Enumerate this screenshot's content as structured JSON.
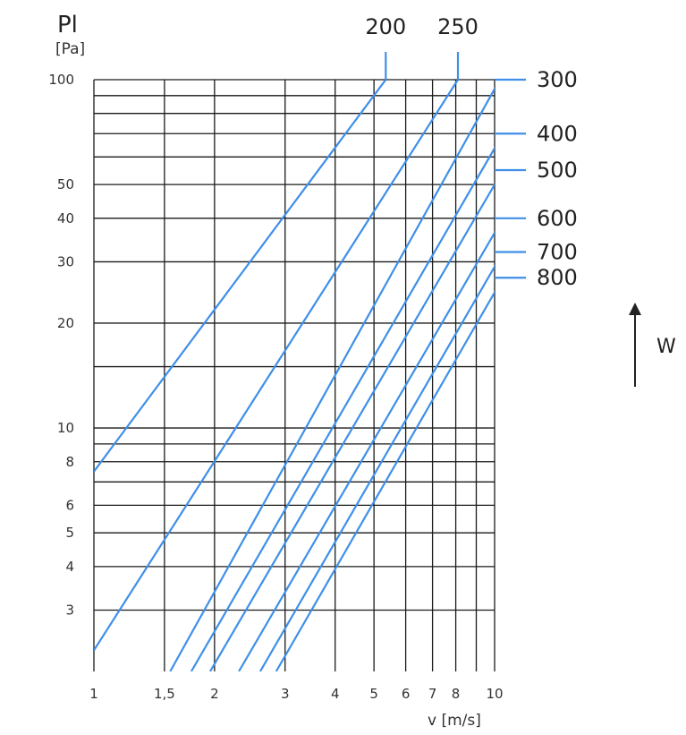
{
  "chart_data": {
    "type": "line",
    "scale": "log-log",
    "ylabel": "Pl",
    "ylabel_unit": "[Pa]",
    "xlabel": "v [m/s]",
    "xlim": [
      1,
      10
    ],
    "ylim": [
      2,
      100
    ],
    "x_ticks": [
      {
        "value": 1,
        "label": "1"
      },
      {
        "value": 1.5,
        "label": "1,5"
      },
      {
        "value": 2,
        "label": "2"
      },
      {
        "value": 3,
        "label": "3"
      },
      {
        "value": 4,
        "label": "4"
      },
      {
        "value": 5,
        "label": "5"
      },
      {
        "value": 6,
        "label": "6"
      },
      {
        "value": 7,
        "label": "7"
      },
      {
        "value": 8,
        "label": "8"
      },
      {
        "value": 10,
        "label": "10"
      }
    ],
    "x_gridlines": [
      1,
      1.5,
      2,
      3,
      4,
      5,
      6,
      7,
      8,
      9,
      10
    ],
    "y_ticks": [
      {
        "value": 100,
        "label": "100"
      },
      {
        "value": 50,
        "label": "50"
      },
      {
        "value": 40,
        "label": "40"
      },
      {
        "value": 30,
        "label": "30"
      },
      {
        "value": 20,
        "label": "20"
      },
      {
        "value": 10,
        "label": "10"
      },
      {
        "value": 8,
        "label": "8"
      },
      {
        "value": 6,
        "label": "6"
      },
      {
        "value": 5,
        "label": "5"
      },
      {
        "value": 4,
        "label": "4"
      },
      {
        "value": 3,
        "label": "3"
      }
    ],
    "y_gridlines": [
      3,
      4,
      5,
      6,
      7,
      8,
      9,
      10,
      15,
      20,
      30,
      40,
      50,
      60,
      70,
      80,
      90,
      100
    ],
    "grid": true,
    "series": [
      {
        "name": "200",
        "x": [
          1,
          5.35
        ],
        "y": [
          7.5,
          100
        ]
      },
      {
        "name": "250",
        "x": [
          1,
          8.1
        ],
        "y": [
          2.3,
          100
        ]
      },
      {
        "name": "300",
        "x": [
          1.55,
          10.3
        ],
        "y": [
          2,
          100
        ]
      },
      {
        "name": "400",
        "x": [
          1.75,
          10.5
        ],
        "y": [
          2,
          70
        ]
      },
      {
        "name": "500",
        "x": [
          1.95,
          10.5
        ],
        "y": [
          2,
          55
        ]
      },
      {
        "name": "600",
        "x": [
          2.3,
          10.5
        ],
        "y": [
          2,
          40
        ]
      },
      {
        "name": "700",
        "x": [
          2.6,
          10.5
        ],
        "y": [
          2,
          32
        ]
      },
      {
        "name": "800",
        "x": [
          2.85,
          10.5
        ],
        "y": [
          2,
          27
        ]
      }
    ],
    "side_annotation": "W",
    "series_color": "#3f8fe8"
  }
}
